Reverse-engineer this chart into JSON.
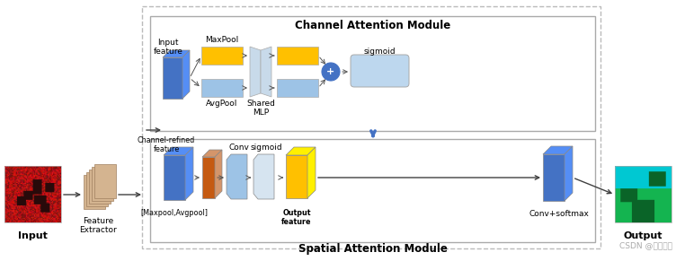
{
  "title": "Channel Attention Module",
  "title2": "Spatial Attention Module",
  "figsize": [
    7.52,
    2.91
  ],
  "dpi": 100,
  "bg_color": "#ffffff",
  "colors": {
    "blue_dark": "#4472c4",
    "blue_light": "#9dc3e6",
    "blue_lighter": "#bdd7ee",
    "yellow": "#ffc000",
    "brown": "#c55a11",
    "brown_light": "#d4956a",
    "arrow": "#404040",
    "blue_arrow": "#4472c4",
    "tan": "#d4b896",
    "plus_fill": "#4472c4",
    "plus_border": "#4472c4"
  },
  "labels": {
    "input": "Input",
    "output": "Output",
    "feature_extractor": "Feature\nExtractor",
    "maxpool": "MaxPool",
    "avgpool": "AvgPool",
    "shared_mlp": "Shared\nMLP",
    "sigmoid": "sigmoid",
    "input_feature": "Input\nfeature",
    "channel_refined": "Channel-refined\nfeature",
    "maxpool_avgpool": "[Maxpool,Avgpool]",
    "conv": "Conv",
    "sigmoid2": "sigmoid",
    "output_feature": "Output\nfeature",
    "conv_softmax": "Conv+softmax"
  },
  "watermark": "CSDN @川川子溢"
}
